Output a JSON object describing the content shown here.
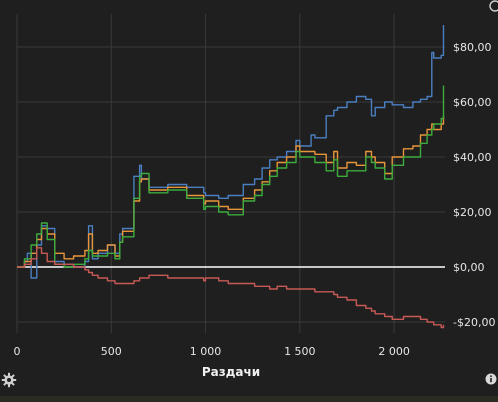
{
  "chart_data": {
    "type": "line",
    "xlabel": "Раздачи",
    "ylabel": "",
    "xlim": [
      0,
      2270
    ],
    "ylim": [
      -24,
      92
    ],
    "x_ticks": [
      {
        "value": 0,
        "label": "0"
      },
      {
        "value": 500,
        "label": "500"
      },
      {
        "value": 1000,
        "label": "1 000"
      },
      {
        "value": 1500,
        "label": "1 500"
      },
      {
        "value": 2000,
        "label": "2 000"
      }
    ],
    "y_ticks": [
      {
        "value": 80,
        "label": "$80,00"
      },
      {
        "value": 60,
        "label": "$60,00"
      },
      {
        "value": 40,
        "label": "$40,00"
      },
      {
        "value": 20,
        "label": "$20,00"
      },
      {
        "value": 0,
        "label": "$0,00"
      },
      {
        "value": -20,
        "label": "-$20,00"
      }
    ],
    "grid": true,
    "zero_line": true,
    "series": [
      {
        "color": "#4a7fc1",
        "x": [
          0,
          40,
          55,
          75,
          95,
          105,
          130,
          160,
          200,
          250,
          300,
          360,
          380,
          400,
          430,
          480,
          520,
          545,
          560,
          620,
          650,
          660,
          700,
          800,
          900,
          990,
          1000,
          1070,
          1120,
          1200,
          1260,
          1300,
          1340,
          1380,
          1430,
          1480,
          1500,
          1560,
          1580,
          1640,
          1680,
          1700,
          1750,
          1800,
          1850,
          1880,
          1900,
          1950,
          1990,
          2050,
          2100,
          2140,
          2175,
          2200,
          2210,
          2250,
          2262
        ],
        "y": [
          0,
          2,
          5,
          -4,
          -4,
          8,
          15,
          14,
          2,
          1,
          0,
          2,
          15,
          3,
          5,
          8,
          5,
          12,
          14,
          33,
          37,
          32,
          29,
          30,
          29,
          27,
          26,
          25,
          26,
          30,
          32,
          36,
          39,
          40,
          42,
          46,
          44,
          48,
          47,
          55,
          57,
          58,
          60,
          62,
          61,
          55,
          58,
          60,
          59,
          58,
          60,
          61,
          62,
          78,
          76,
          77,
          88
        ]
      },
      {
        "color": "#e8953a",
        "x": [
          0,
          40,
          75,
          105,
          130,
          160,
          200,
          250,
          300,
          360,
          380,
          400,
          430,
          480,
          520,
          545,
          560,
          620,
          650,
          660,
          700,
          800,
          900,
          990,
          1000,
          1070,
          1120,
          1200,
          1260,
          1300,
          1340,
          1380,
          1430,
          1480,
          1500,
          1560,
          1580,
          1640,
          1680,
          1700,
          1750,
          1800,
          1850,
          1880,
          1900,
          1950,
          1990,
          2050,
          2100,
          2140,
          2175,
          2200,
          2210,
          2250,
          2262
        ],
        "y": [
          0,
          2,
          5,
          10,
          14,
          12,
          5,
          3,
          4,
          6,
          12,
          5,
          6,
          8,
          4,
          9,
          13,
          24,
          31,
          32,
          28,
          29,
          26,
          23,
          24,
          22,
          21,
          25,
          28,
          31,
          35,
          38,
          40,
          44,
          42,
          42,
          41,
          38,
          42,
          36,
          38,
          37,
          42,
          40,
          38,
          34,
          40,
          43,
          44,
          48,
          50,
          52,
          50,
          52,
          55
        ]
      },
      {
        "color": "#3dab3d",
        "x": [
          0,
          40,
          75,
          105,
          130,
          160,
          200,
          250,
          300,
          360,
          380,
          400,
          430,
          480,
          520,
          545,
          560,
          620,
          650,
          660,
          700,
          800,
          900,
          990,
          1000,
          1070,
          1120,
          1200,
          1260,
          1300,
          1340,
          1380,
          1430,
          1480,
          1500,
          1560,
          1580,
          1640,
          1680,
          1700,
          1750,
          1800,
          1850,
          1880,
          1900,
          1950,
          1990,
          2050,
          2100,
          2140,
          2175,
          2200,
          2210,
          2250,
          2262
        ],
        "y": [
          0,
          3,
          8,
          12,
          16,
          10,
          1,
          0,
          1,
          3,
          6,
          4,
          4,
          5,
          3,
          9,
          11,
          25,
          33,
          34,
          27,
          28,
          25,
          21,
          22,
          20,
          19,
          24,
          26,
          30,
          33,
          36,
          38,
          42,
          40,
          40,
          38,
          35,
          39,
          33,
          35,
          35,
          40,
          38,
          36,
          32,
          37,
          40,
          40,
          45,
          48,
          50,
          52,
          54,
          66
        ]
      },
      {
        "color": "#c75a55",
        "x": [
          0,
          40,
          75,
          105,
          130,
          160,
          200,
          250,
          300,
          360,
          380,
          400,
          430,
          480,
          520,
          545,
          560,
          620,
          650,
          660,
          700,
          800,
          900,
          990,
          1000,
          1070,
          1120,
          1200,
          1260,
          1300,
          1340,
          1380,
          1430,
          1480,
          1500,
          1560,
          1580,
          1640,
          1680,
          1700,
          1750,
          1800,
          1850,
          1880,
          1900,
          1950,
          1990,
          2050,
          2100,
          2140,
          2175,
          2200,
          2210,
          2250,
          2262
        ],
        "y": [
          0,
          1,
          3,
          7,
          5,
          2,
          1,
          1,
          0,
          -1,
          -2,
          -3,
          -4,
          -5,
          -6,
          -6,
          -6,
          -5,
          -4,
          -4,
          -3,
          -4,
          -4,
          -5,
          -4,
          -5,
          -6,
          -6,
          -7,
          -7,
          -8,
          -7,
          -8,
          -8,
          -8,
          -8,
          -9,
          -9,
          -10,
          -11,
          -12,
          -14,
          -15,
          -16,
          -17,
          -18,
          -19,
          -18,
          -18,
          -19,
          -20,
          -20,
          -21,
          -22,
          -21
        ]
      }
    ]
  },
  "icons": {
    "gear": "gear-icon",
    "info": "info-icon",
    "corner": "resize-corner-icon"
  }
}
